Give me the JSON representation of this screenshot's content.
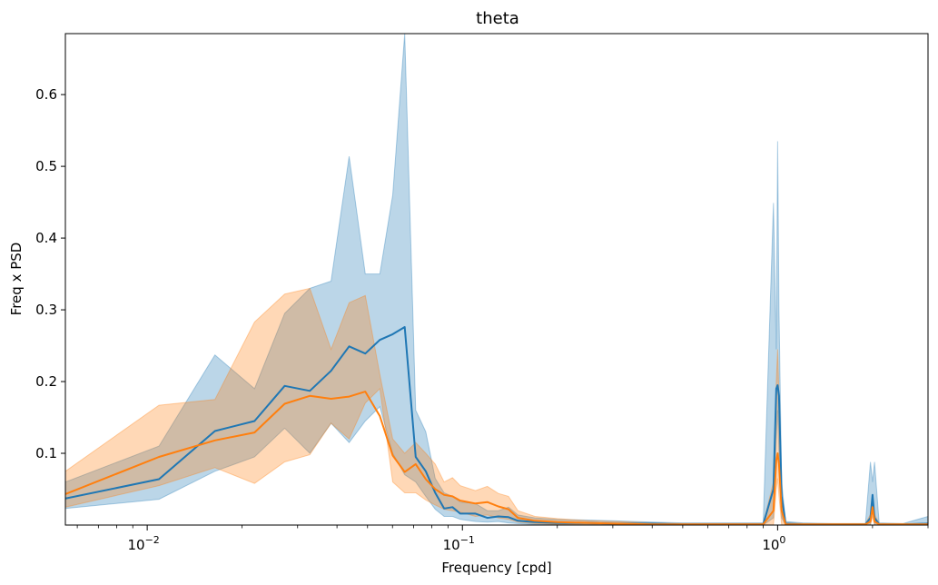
{
  "chart_data": {
    "type": "line",
    "title": "theta",
    "xlabel": "Frequency [cpd]",
    "ylabel": "Freq x PSD",
    "xscale": "log",
    "xlim": [
      0.0055,
      3.0
    ],
    "ylim": [
      0.0,
      0.685
    ],
    "grid": false,
    "legend": "none",
    "x_ticks": [
      {
        "value": 0.01,
        "base": "10",
        "exp": "−2"
      },
      {
        "value": 0.1,
        "base": "10",
        "exp": "−1"
      },
      {
        "value": 1.0,
        "base": "10",
        "exp": "0"
      }
    ],
    "y_ticks": [
      0.1,
      0.2,
      0.3,
      0.4,
      0.5,
      0.6
    ],
    "series": [
      {
        "color": "#1f77b4",
        "band_color": "#1f77b4",
        "band_opacity": 0.3,
        "x": [
          0.0055,
          0.0109,
          0.0164,
          0.0219,
          0.0273,
          0.0328,
          0.0383,
          0.0437,
          0.0492,
          0.0547,
          0.0601,
          0.0656,
          0.0711,
          0.0765,
          0.082,
          0.0875,
          0.093,
          0.0984,
          0.11,
          0.12,
          0.13,
          0.14,
          0.15,
          0.17,
          0.2,
          0.25,
          0.3,
          0.4,
          0.5,
          0.7,
          0.9,
          0.97,
          0.99,
          1.0,
          1.01,
          1.03,
          1.06,
          1.2,
          1.5,
          1.9,
          1.97,
          2.0,
          2.03,
          2.1,
          2.5,
          3.0
        ],
        "y": [
          0.037,
          0.064,
          0.131,
          0.145,
          0.194,
          0.187,
          0.215,
          0.249,
          0.239,
          0.258,
          0.266,
          0.276,
          0.095,
          0.075,
          0.045,
          0.023,
          0.025,
          0.016,
          0.016,
          0.01,
          0.012,
          0.011,
          0.006,
          0.004,
          0.003,
          0.003,
          0.002,
          0.002,
          0.001,
          0.001,
          0.001,
          0.05,
          0.19,
          0.195,
          0.18,
          0.04,
          0.002,
          0.001,
          0.001,
          0.001,
          0.01,
          0.042,
          0.01,
          0.001,
          0.001,
          0.002
        ],
        "lower": [
          0.023,
          0.036,
          0.075,
          0.095,
          0.135,
          0.1,
          0.142,
          0.115,
          0.145,
          0.165,
          0.1,
          0.07,
          0.06,
          0.04,
          0.022,
          0.012,
          0.012,
          0.008,
          0.005,
          0.004,
          0.005,
          0.003,
          0.002,
          0.001,
          0.001,
          0.001,
          0.001,
          0.0,
          0.0,
          0.0,
          0.0,
          0.01,
          0.12,
          0.16,
          0.1,
          0.01,
          0.0,
          0.0,
          0.0,
          0.0,
          0.0,
          0.02,
          0.0,
          0.0,
          0.0,
          0.0
        ],
        "upper": [
          0.06,
          0.11,
          0.237,
          0.19,
          0.295,
          0.33,
          0.34,
          0.514,
          0.35,
          0.35,
          0.46,
          0.685,
          0.16,
          0.13,
          0.065,
          0.045,
          0.04,
          0.032,
          0.03,
          0.02,
          0.02,
          0.025,
          0.014,
          0.01,
          0.008,
          0.007,
          0.006,
          0.004,
          0.003,
          0.003,
          0.003,
          0.449,
          0.245,
          0.535,
          0.3,
          0.06,
          0.005,
          0.003,
          0.002,
          0.002,
          0.088,
          0.06,
          0.088,
          0.003,
          0.002,
          0.012
        ]
      },
      {
        "color": "#ff7f0e",
        "band_color": "#ff7f0e",
        "band_opacity": 0.3,
        "x": [
          0.0055,
          0.0109,
          0.0164,
          0.0219,
          0.0273,
          0.0328,
          0.0383,
          0.0437,
          0.0492,
          0.0547,
          0.0601,
          0.0656,
          0.0711,
          0.0765,
          0.082,
          0.0875,
          0.093,
          0.0984,
          0.11,
          0.12,
          0.13,
          0.14,
          0.15,
          0.17,
          0.2,
          0.25,
          0.3,
          0.4,
          0.5,
          0.7,
          0.9,
          0.97,
          0.99,
          1.0,
          1.01,
          1.03,
          1.06,
          1.2,
          1.5,
          1.9,
          1.97,
          2.0,
          2.03,
          2.1,
          2.5,
          3.0
        ],
        "y": [
          0.043,
          0.095,
          0.118,
          0.129,
          0.169,
          0.18,
          0.176,
          0.179,
          0.186,
          0.152,
          0.097,
          0.074,
          0.085,
          0.064,
          0.05,
          0.042,
          0.04,
          0.034,
          0.03,
          0.032,
          0.026,
          0.022,
          0.01,
          0.006,
          0.004,
          0.003,
          0.002,
          0.001,
          0.001,
          0.001,
          0.001,
          0.02,
          0.09,
          0.1,
          0.085,
          0.02,
          0.001,
          0.001,
          0.001,
          0.001,
          0.005,
          0.025,
          0.005,
          0.001,
          0.001,
          0.001
        ],
        "lower": [
          0.025,
          0.055,
          0.08,
          0.058,
          0.088,
          0.098,
          0.142,
          0.12,
          0.17,
          0.19,
          0.06,
          0.045,
          0.045,
          0.035,
          0.028,
          0.022,
          0.02,
          0.018,
          0.012,
          0.014,
          0.01,
          0.008,
          0.004,
          0.002,
          0.001,
          0.001,
          0.0,
          0.0,
          0.0,
          0.0,
          0.0,
          0.0,
          0.05,
          0.065,
          0.04,
          0.0,
          0.0,
          0.0,
          0.0,
          0.0,
          0.0,
          0.012,
          0.0,
          0.0,
          0.0,
          0.0
        ],
        "upper": [
          0.075,
          0.167,
          0.175,
          0.283,
          0.322,
          0.33,
          0.245,
          0.31,
          0.32,
          0.21,
          0.12,
          0.1,
          0.115,
          0.1,
          0.085,
          0.06,
          0.066,
          0.055,
          0.048,
          0.054,
          0.044,
          0.04,
          0.02,
          0.012,
          0.009,
          0.006,
          0.005,
          0.003,
          0.002,
          0.002,
          0.002,
          0.06,
          0.2,
          0.245,
          0.18,
          0.04,
          0.003,
          0.002,
          0.002,
          0.002,
          0.015,
          0.04,
          0.015,
          0.002,
          0.002,
          0.002
        ]
      }
    ]
  }
}
